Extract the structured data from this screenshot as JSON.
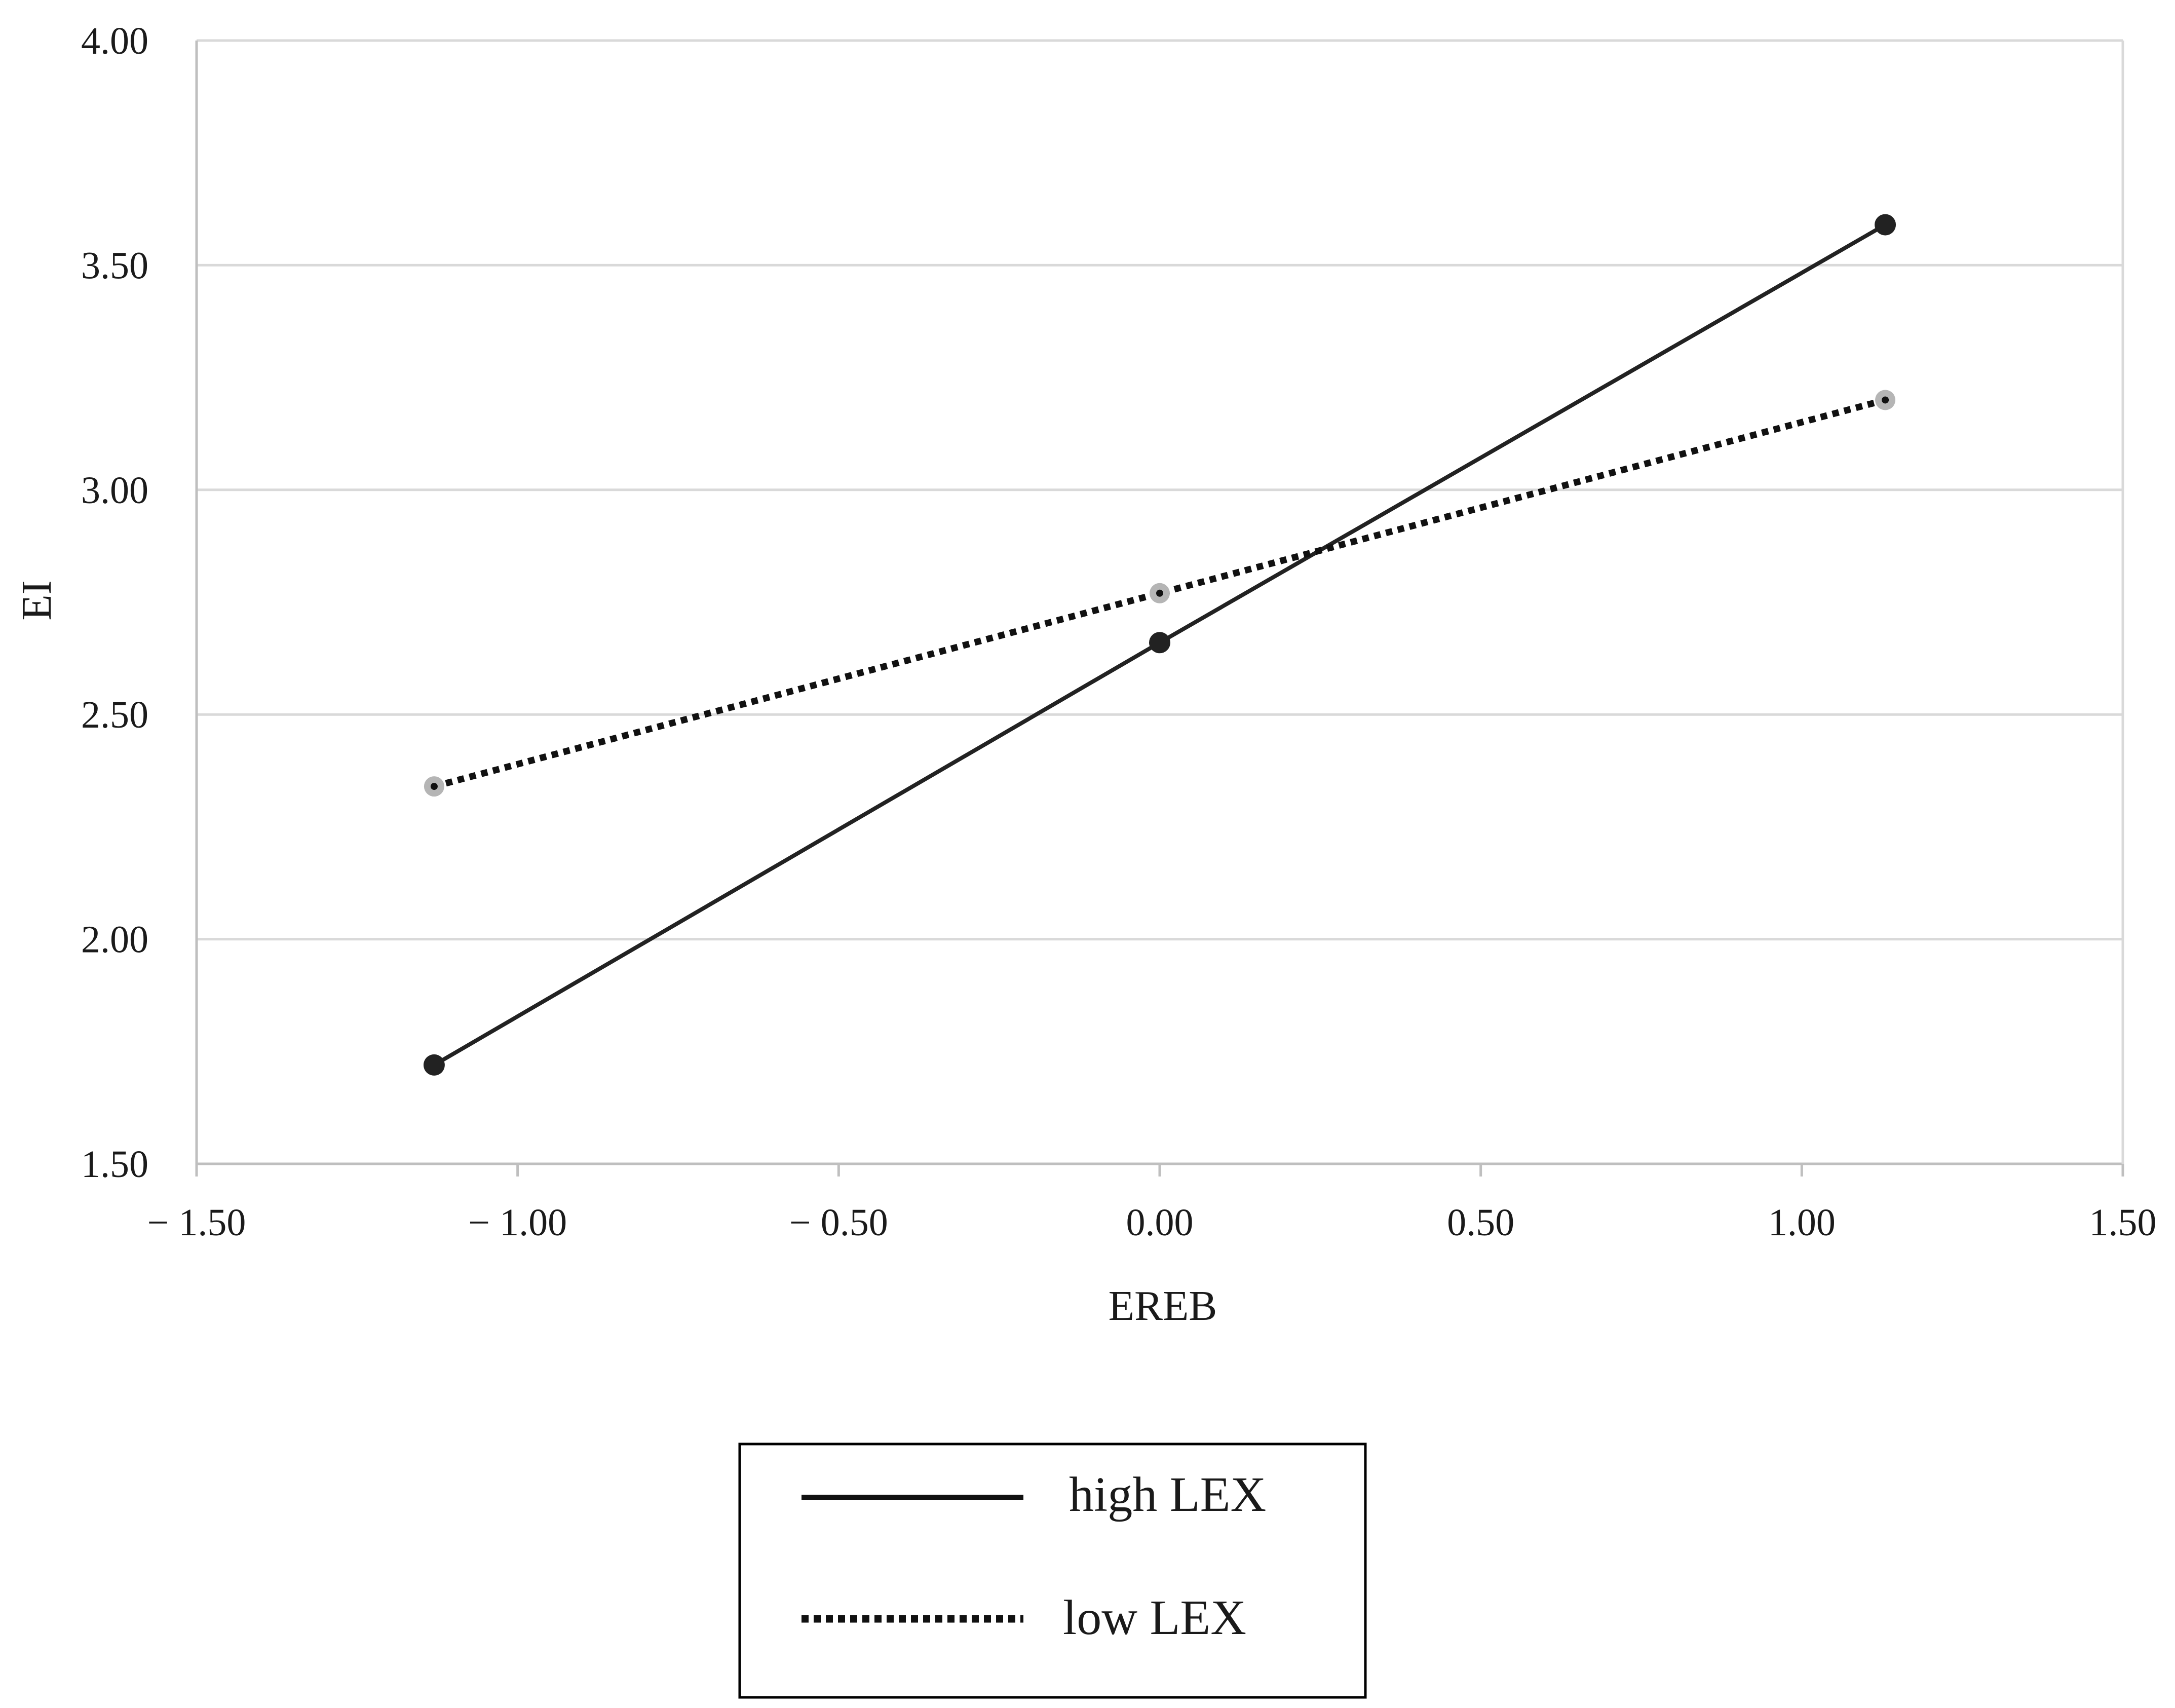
{
  "chart_data": {
    "type": "line",
    "xlabel": "EREB",
    "ylabel": "EI",
    "xlim": [
      -1.5,
      1.5
    ],
    "ylim": [
      1.5,
      4.0
    ],
    "grid": "horizontal",
    "legend_position": "bottom-center",
    "x_ticks": [
      "− 1.50",
      "− 1.00",
      "− 0.50",
      "0.00",
      "0.50",
      "1.00",
      "1.50"
    ],
    "x_tick_values": [
      -1.5,
      -1.0,
      -0.5,
      0.0,
      0.5,
      1.0,
      1.5
    ],
    "y_ticks": [
      "1.50",
      "2.00",
      "2.50",
      "3.00",
      "3.50",
      "4.00"
    ],
    "y_tick_values": [
      1.5,
      2.0,
      2.5,
      3.0,
      3.5,
      4.0
    ],
    "series": [
      {
        "name": "high LEX",
        "style": "solid",
        "color": "#222222",
        "x": [
          -1.13,
          0.0,
          1.13
        ],
        "y": [
          1.72,
          2.66,
          3.59
        ]
      },
      {
        "name": "low LEX",
        "style": "dotted",
        "color": "#111111",
        "marker_color": "#b5b5b5",
        "x": [
          -1.13,
          0.0,
          1.13
        ],
        "y": [
          2.34,
          2.77,
          3.2
        ]
      }
    ]
  },
  "colors": {
    "gridline": "#d9d9d9",
    "axis": "#bfbfbf",
    "legend_border": "#000000"
  }
}
